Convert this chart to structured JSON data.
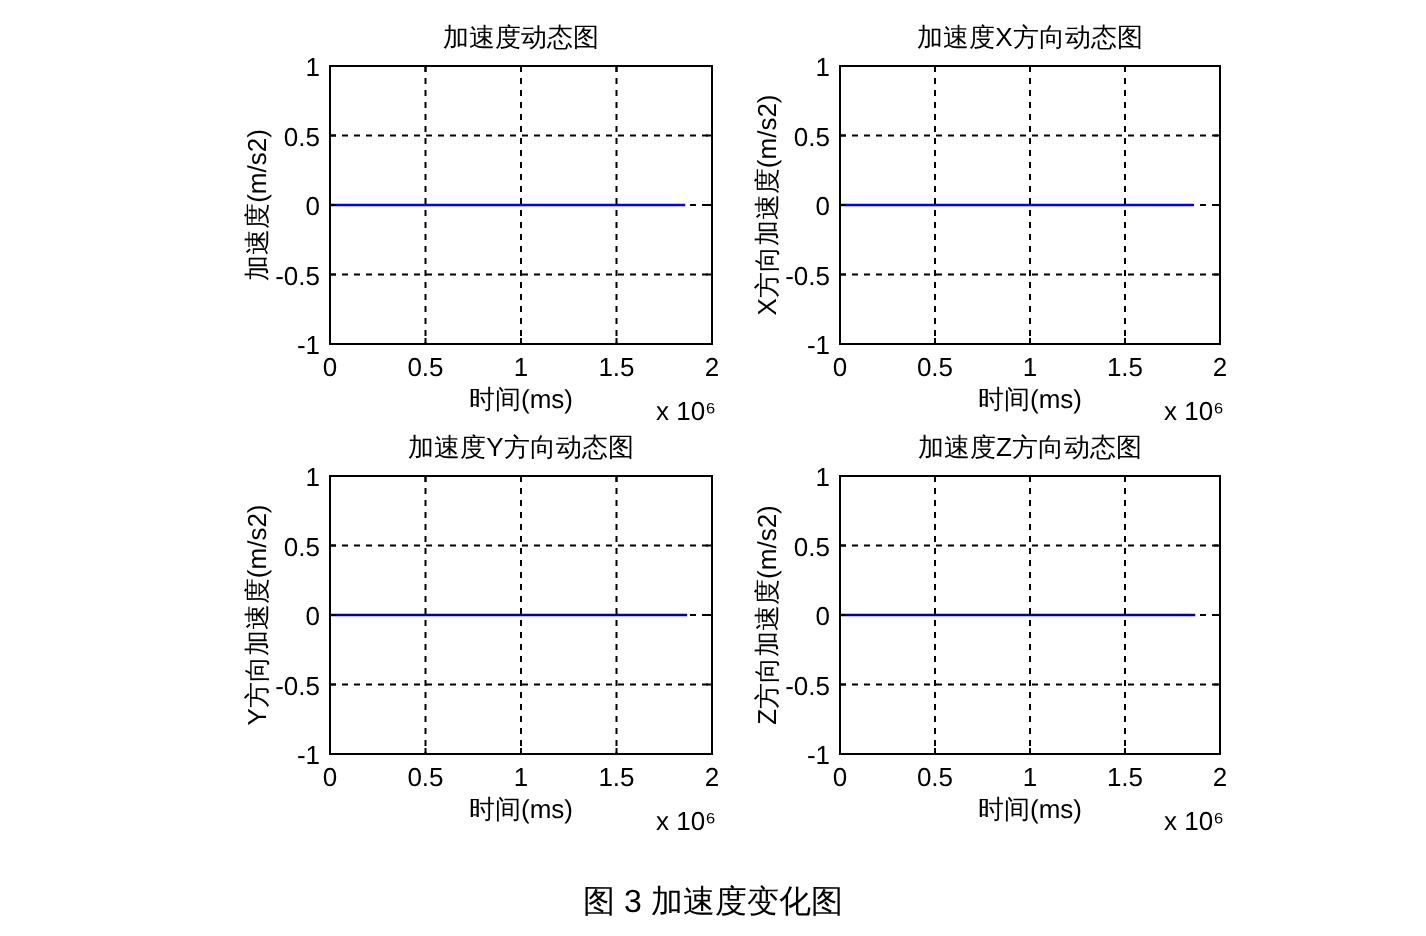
{
  "chart_data": [
    {
      "type": "line",
      "title": "加速度动态图",
      "xlabel": "时间(ms)",
      "ylabel": "加速度(m/s2)",
      "annotations": [
        "x 10⁶"
      ],
      "x": [
        0,
        1.86
      ],
      "series": [
        {
          "color": "#0000ff",
          "values": [
            0,
            0
          ]
        }
      ],
      "xlim": [
        0,
        2
      ],
      "xticks": [
        0,
        0.5,
        1,
        1.5,
        2
      ],
      "ylim": [
        -1,
        1
      ],
      "yticks": [
        -1,
        -0.5,
        0,
        0.5,
        1
      ],
      "grid": true
    },
    {
      "type": "line",
      "title": "加速度X方向动态图",
      "xlabel": "时间(ms)",
      "ylabel": "X方向加速度(m/s2)",
      "annotations": [
        "x 10⁶"
      ],
      "x": [
        0,
        1.86
      ],
      "series": [
        {
          "color": "#0000ff",
          "values": [
            0,
            0
          ]
        }
      ],
      "xlim": [
        0,
        2
      ],
      "xticks": [
        0,
        0.5,
        1,
        1.5,
        2
      ],
      "ylim": [
        -1,
        1
      ],
      "yticks": [
        -1,
        -0.5,
        0,
        0.5,
        1
      ],
      "grid": true
    },
    {
      "type": "line",
      "title": "加速度Y方向动态图",
      "xlabel": "时间(ms)",
      "ylabel": "Y方向加速度(m/s2)",
      "annotations": [
        "x 10⁶"
      ],
      "x": [
        0,
        1.87
      ],
      "series": [
        {
          "color": "#0000a0",
          "values": [
            0,
            0
          ]
        }
      ],
      "xlim": [
        0,
        2
      ],
      "xticks": [
        0,
        0.5,
        1,
        1.5,
        2
      ],
      "ylim": [
        -1,
        1
      ],
      "yticks": [
        -1,
        -0.5,
        0,
        0.5,
        1
      ],
      "grid": true
    },
    {
      "type": "line",
      "title": "加速度Z方向动态图",
      "xlabel": "时间(ms)",
      "ylabel": "Z方向加速度(m/s2)",
      "annotations": [
        "x 10⁶",
        "图 3  加速度变化图"
      ],
      "x": [
        0,
        1.87
      ],
      "series": [
        {
          "color": "#0000a0",
          "values": [
            0,
            0
          ]
        }
      ],
      "xlim": [
        0,
        2
      ],
      "xticks": [
        0,
        0.5,
        1,
        1.5,
        2
      ],
      "ylim": [
        -1,
        1
      ],
      "yticks": [
        -1,
        -0.5,
        0,
        0.5,
        1
      ],
      "grid": true
    }
  ]
}
